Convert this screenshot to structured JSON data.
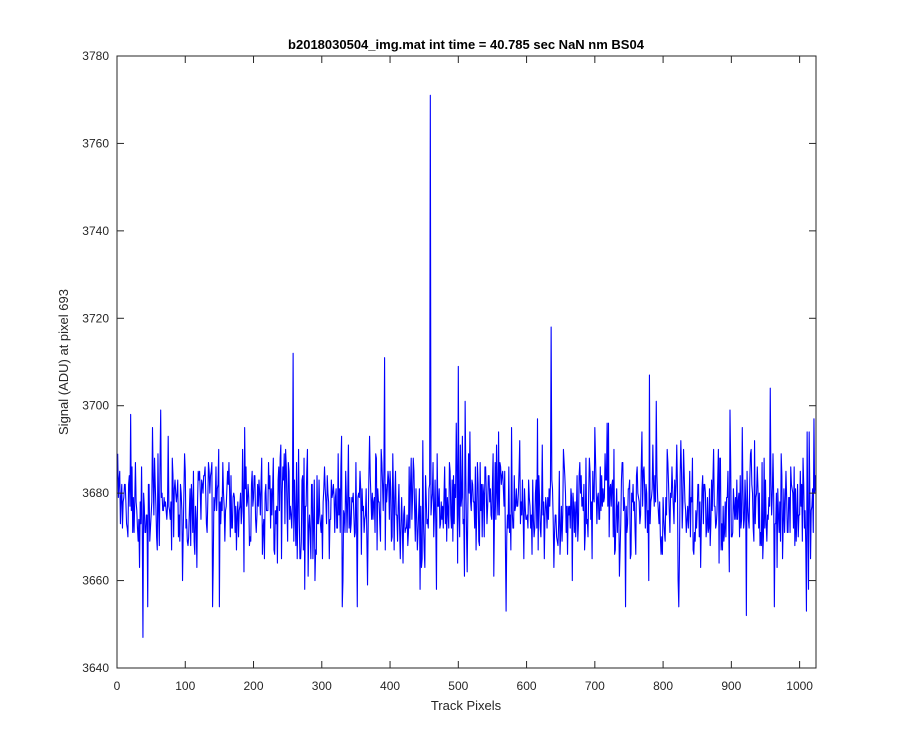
{
  "chart_data": {
    "type": "line",
    "title": "b2018030504_img.mat int time = 40.785 sec  NaN nm BS04",
    "xlabel": "Track Pixels",
    "ylabel": "Signal (ADU) at pixel 693",
    "xlim": [
      0,
      1024
    ],
    "ylim": [
      3640,
      3780
    ],
    "xticks": [
      0,
      100,
      200,
      300,
      400,
      500,
      600,
      700,
      800,
      900,
      1000
    ],
    "yticks": [
      3640,
      3660,
      3680,
      3700,
      3720,
      3740,
      3760,
      3780
    ],
    "grid": false,
    "box": true,
    "series": [
      {
        "color": "#0000ff",
        "noise": {
          "x_start": 1,
          "x_end": 1024,
          "mean": 3677.5,
          "spread": 7,
          "min": 3652,
          "max": 3699,
          "seed": 20180305
        },
        "x": [
          20,
          38,
          45,
          52,
          60,
          75,
          140,
          150,
          258,
          275,
          330,
          352,
          392,
          444,
          459,
          468,
          500,
          510,
          570,
          636,
          700,
          745,
          780,
          790,
          823,
          898,
          922,
          957,
          963,
          1010,
          1023
        ],
        "y": [
          3698,
          3647,
          3654,
          3695,
          3689,
          3693,
          3654,
          3654,
          3712,
          3658,
          3654,
          3654,
          3711,
          3658,
          3771,
          3658,
          3709,
          3701,
          3653,
          3718,
          3695,
          3654,
          3707,
          3701,
          3654,
          3699,
          3652,
          3704,
          3654,
          3653,
          3684
        ]
      }
    ]
  }
}
